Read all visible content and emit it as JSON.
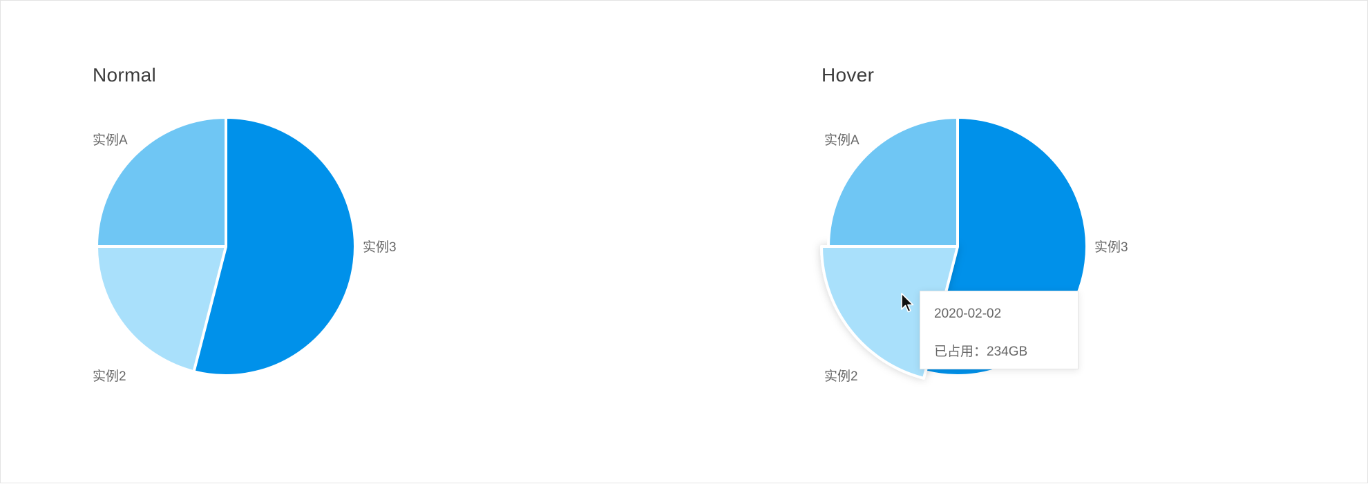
{
  "chart_data": [
    {
      "type": "pie",
      "title": "Normal",
      "categories": [
        "实例3",
        "实例2",
        "实例A"
      ],
      "values": [
        54,
        21,
        25
      ],
      "colors": [
        "#0091EA",
        "#A9E0FB",
        "#6FC6F4"
      ],
      "legend": "none"
    },
    {
      "type": "pie",
      "title": "Hover",
      "categories": [
        "实例3",
        "实例2",
        "实例A"
      ],
      "values": [
        54,
        21,
        25
      ],
      "colors": [
        "#0091EA",
        "#A9E0FB",
        "#6FC6F4"
      ],
      "legend": "none",
      "hovered_slice": "实例2",
      "tooltip": {
        "date": "2020-02-02",
        "label": "已占用：",
        "value": "234GB"
      }
    }
  ]
}
